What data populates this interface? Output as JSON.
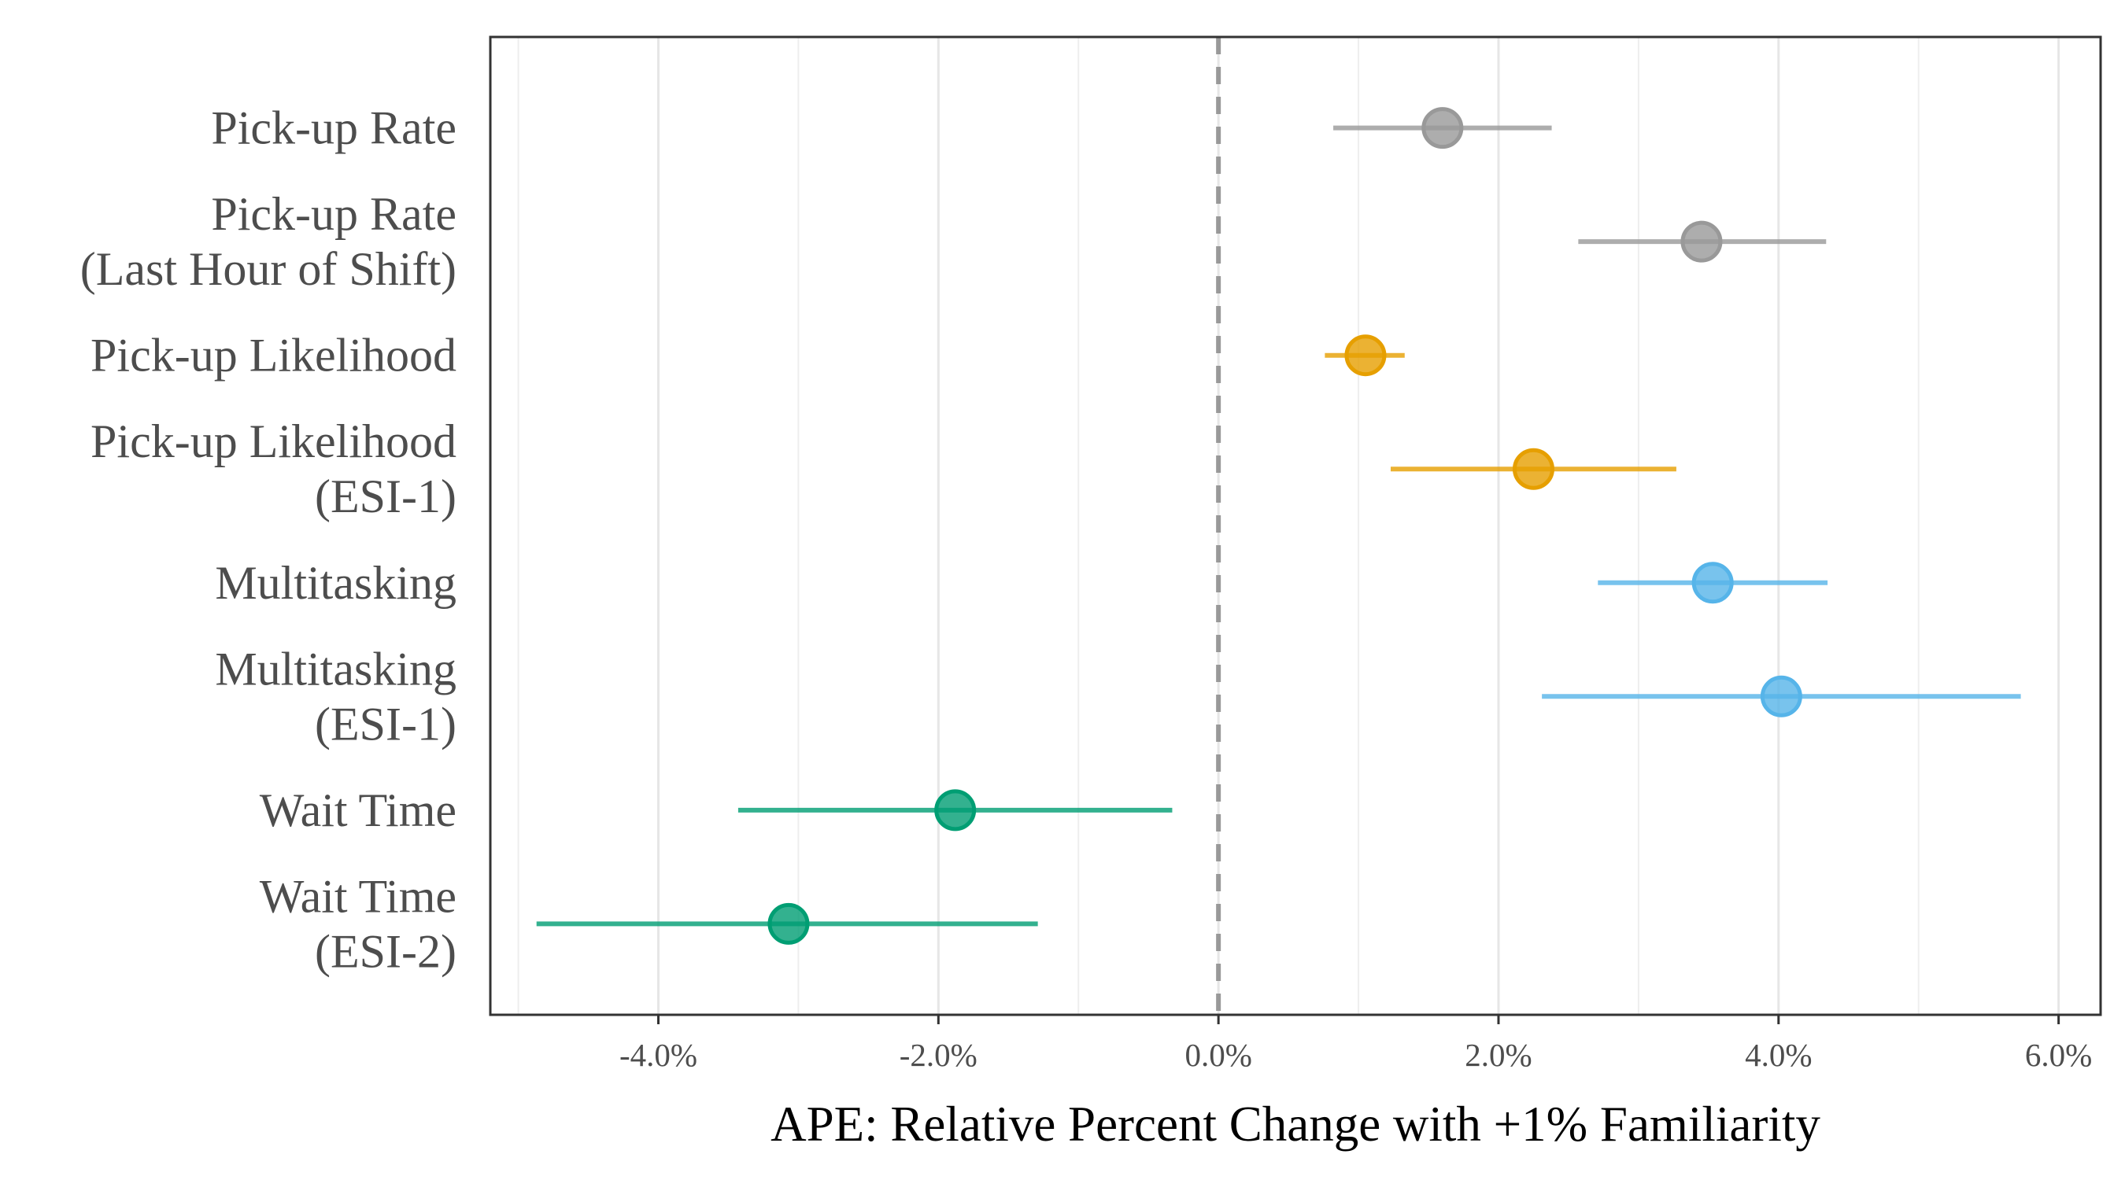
{
  "chart_data": {
    "type": "scatter",
    "subtype": "forest-plot with horizontal error bars",
    "title": "",
    "xlabel": "APE: Relative Percent Change with +1% Familiarity",
    "ylabel": "",
    "xlim": [
      -5.2,
      6.3
    ],
    "x_ticks": [
      -4,
      -2,
      0,
      2,
      4,
      6
    ],
    "x_tick_labels": [
      "-4.0%",
      "-2.0%",
      "0.0%",
      "2.0%",
      "4.0%",
      "6.0%"
    ],
    "reference_line": {
      "x": 0,
      "style": "dashed",
      "color": "#999999"
    },
    "grid": {
      "vertical_major": true,
      "vertical_minor": true,
      "horizontal": false
    },
    "legend": "none",
    "categories": [
      {
        "label": [
          "Pick-up Rate"
        ],
        "estimate": 1.6,
        "lower": 0.82,
        "upper": 2.38,
        "color": "#999999"
      },
      {
        "label": [
          "Pick-up Rate",
          "(Last Hour of Shift)"
        ],
        "estimate": 3.45,
        "lower": 2.57,
        "upper": 4.34,
        "color": "#999999"
      },
      {
        "label": [
          "Pick-up Likelihood"
        ],
        "estimate": 1.05,
        "lower": 0.76,
        "upper": 1.33,
        "color": "#E69F00"
      },
      {
        "label": [
          "Pick-up Likelihood",
          "(ESI-1)"
        ],
        "estimate": 2.25,
        "lower": 1.23,
        "upper": 3.27,
        "color": "#E69F00"
      },
      {
        "label": [
          "Multitasking"
        ],
        "estimate": 3.53,
        "lower": 2.71,
        "upper": 4.35,
        "color": "#56B4E9"
      },
      {
        "label": [
          "Multitasking",
          "(ESI-1)"
        ],
        "estimate": 4.02,
        "lower": 2.31,
        "upper": 5.73,
        "color": "#56B4E9"
      },
      {
        "label": [
          "Wait Time"
        ],
        "estimate": -1.88,
        "lower": -3.43,
        "upper": -0.33,
        "color": "#009E73"
      },
      {
        "label": [
          "Wait Time",
          "(ESI-2)"
        ],
        "estimate": -3.07,
        "lower": -4.87,
        "upper": -1.29,
        "color": "#009E73"
      }
    ]
  }
}
